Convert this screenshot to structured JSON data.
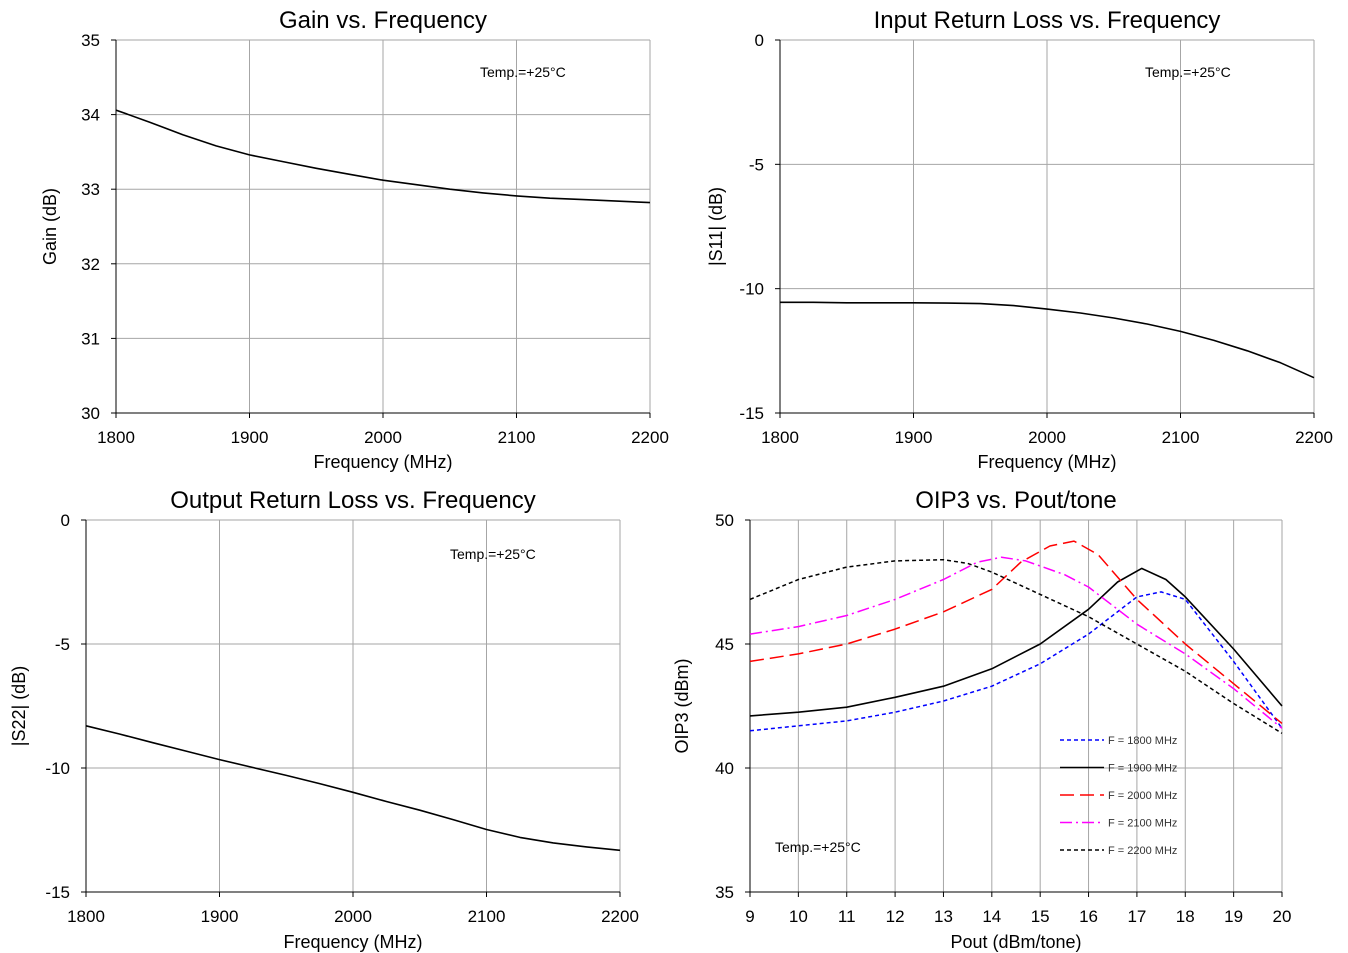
{
  "chart_data": [
    {
      "type": "line",
      "title": "Gain vs. Frequency",
      "xlabel": "Frequency (MHz)",
      "ylabel": "Gain (dB)",
      "xlim": [
        1800,
        2200
      ],
      "ylim": [
        30,
        35
      ],
      "xticks": [
        1800,
        1900,
        2000,
        2100,
        2200
      ],
      "yticks": [
        30,
        31,
        32,
        33,
        34,
        35
      ],
      "annotation": "Temp.=+25°C",
      "grid": true,
      "series": [
        {
          "color": "#000000",
          "dash": "solid",
          "points": [
            [
              1800,
              34.06
            ],
            [
              1825,
              33.9
            ],
            [
              1850,
              33.73
            ],
            [
              1875,
              33.58
            ],
            [
              1900,
              33.46
            ],
            [
              1925,
              33.37
            ],
            [
              1950,
              33.28
            ],
            [
              1975,
              33.2
            ],
            [
              2000,
              33.12
            ],
            [
              2025,
              33.06
            ],
            [
              2050,
              33.0
            ],
            [
              2075,
              32.95
            ],
            [
              2100,
              32.91
            ],
            [
              2125,
              32.88
            ],
            [
              2150,
              32.86
            ],
            [
              2175,
              32.84
            ],
            [
              2200,
              32.82
            ]
          ]
        }
      ]
    },
    {
      "type": "line",
      "title": "Input Return Loss vs. Frequency",
      "xlabel": "Frequency (MHz)",
      "ylabel": "|S11| (dB)",
      "xlim": [
        1800,
        2200
      ],
      "ylim": [
        -15,
        0
      ],
      "xticks": [
        1800,
        1900,
        2000,
        2100,
        2200
      ],
      "yticks": [
        -15,
        -10,
        -5,
        0
      ],
      "annotation": "Temp.=+25°C",
      "grid": true,
      "series": [
        {
          "color": "#000000",
          "dash": "solid",
          "points": [
            [
              1800,
              -10.55
            ],
            [
              1825,
              -10.55
            ],
            [
              1850,
              -10.57
            ],
            [
              1875,
              -10.57
            ],
            [
              1900,
              -10.57
            ],
            [
              1925,
              -10.58
            ],
            [
              1950,
              -10.6
            ],
            [
              1975,
              -10.68
            ],
            [
              2000,
              -10.82
            ],
            [
              2025,
              -10.98
            ],
            [
              2050,
              -11.18
            ],
            [
              2075,
              -11.42
            ],
            [
              2100,
              -11.72
            ],
            [
              2125,
              -12.08
            ],
            [
              2150,
              -12.5
            ],
            [
              2175,
              -12.98
            ],
            [
              2200,
              -13.58
            ]
          ]
        }
      ]
    },
    {
      "type": "line",
      "title": "Output Return Loss vs. Frequency",
      "xlabel": "Frequency (MHz)",
      "ylabel": "|S22| (dB)",
      "xlim": [
        1800,
        2200
      ],
      "ylim": [
        -15,
        0
      ],
      "xticks": [
        1800,
        1900,
        2000,
        2100,
        2200
      ],
      "yticks": [
        -15,
        -10,
        -5,
        0
      ],
      "annotation": "Temp.=+25°C",
      "grid": true,
      "series": [
        {
          "color": "#000000",
          "dash": "solid",
          "points": [
            [
              1800,
              -8.3
            ],
            [
              1825,
              -8.63
            ],
            [
              1850,
              -8.98
            ],
            [
              1875,
              -9.32
            ],
            [
              1900,
              -9.66
            ],
            [
              1925,
              -9.98
            ],
            [
              1950,
              -10.3
            ],
            [
              1975,
              -10.63
            ],
            [
              2000,
              -10.98
            ],
            [
              2025,
              -11.35
            ],
            [
              2050,
              -11.7
            ],
            [
              2075,
              -12.08
            ],
            [
              2100,
              -12.48
            ],
            [
              2125,
              -12.8
            ],
            [
              2150,
              -13.02
            ],
            [
              2175,
              -13.18
            ],
            [
              2200,
              -13.32
            ]
          ]
        }
      ]
    },
    {
      "type": "line",
      "title": "OIP3 vs. Pout/tone",
      "xlabel": "Pout (dBm/tone)",
      "ylabel": "OIP3 (dBm)",
      "xlim": [
        9,
        20
      ],
      "ylim": [
        35,
        50
      ],
      "xticks": [
        9,
        10,
        11,
        12,
        13,
        14,
        15,
        16,
        17,
        18,
        19,
        20
      ],
      "yticks": [
        35,
        40,
        45,
        50
      ],
      "annotation": "Temp.=+25°C",
      "grid": true,
      "legend_position": "right",
      "series": [
        {
          "name": "F = 1800 MHz",
          "color": "#0000ff",
          "dash": "short-dash",
          "points": [
            [
              9,
              41.5
            ],
            [
              10,
              41.7
            ],
            [
              11,
              41.9
            ],
            [
              12,
              42.25
            ],
            [
              13,
              42.7
            ],
            [
              14,
              43.3
            ],
            [
              15,
              44.2
            ],
            [
              16,
              45.4
            ],
            [
              17,
              46.9
            ],
            [
              17.5,
              47.1
            ],
            [
              18,
              46.8
            ],
            [
              19,
              44.3
            ],
            [
              20,
              41.6
            ]
          ]
        },
        {
          "name": "F = 1900 MHz",
          "color": "#000000",
          "dash": "solid",
          "points": [
            [
              9,
              42.1
            ],
            [
              10,
              42.25
            ],
            [
              11,
              42.45
            ],
            [
              12,
              42.85
            ],
            [
              13,
              43.3
            ],
            [
              14,
              44.0
            ],
            [
              15,
              45.0
            ],
            [
              16,
              46.4
            ],
            [
              16.6,
              47.5
            ],
            [
              17.1,
              48.05
            ],
            [
              17.6,
              47.6
            ],
            [
              18,
              46.9
            ],
            [
              19,
              44.8
            ],
            [
              20,
              42.5
            ]
          ]
        },
        {
          "name": "F = 2000 MHz",
          "color": "#ff0000",
          "dash": "long-dash",
          "points": [
            [
              9,
              44.3
            ],
            [
              10,
              44.6
            ],
            [
              11,
              45.0
            ],
            [
              12,
              45.6
            ],
            [
              13,
              46.3
            ],
            [
              14,
              47.2
            ],
            [
              14.6,
              48.3
            ],
            [
              15.2,
              48.95
            ],
            [
              15.7,
              49.15
            ],
            [
              16.2,
              48.6
            ],
            [
              17,
              46.8
            ],
            [
              18,
              45.0
            ],
            [
              19,
              43.4
            ],
            [
              20,
              41.8
            ]
          ]
        },
        {
          "name": "F = 2100 MHz",
          "color": "#ff00ff",
          "dash": "dash-dot",
          "points": [
            [
              9,
              45.4
            ],
            [
              10,
              45.7
            ],
            [
              11,
              46.15
            ],
            [
              12,
              46.8
            ],
            [
              13,
              47.6
            ],
            [
              13.7,
              48.3
            ],
            [
              14.2,
              48.5
            ],
            [
              14.7,
              48.35
            ],
            [
              15.5,
              47.8
            ],
            [
              16,
              47.3
            ],
            [
              17,
              45.8
            ],
            [
              18,
              44.6
            ],
            [
              19,
              43.2
            ],
            [
              20,
              41.6
            ]
          ]
        },
        {
          "name": "F = 2200 MHz",
          "color": "#000000",
          "dash": "short-dash",
          "points": [
            [
              9,
              46.8
            ],
            [
              10,
              47.6
            ],
            [
              11,
              48.1
            ],
            [
              12,
              48.35
            ],
            [
              13,
              48.4
            ],
            [
              13.5,
              48.25
            ],
            [
              14,
              47.9
            ],
            [
              15,
              47.0
            ],
            [
              16,
              46.1
            ],
            [
              17,
              45.0
            ],
            [
              18,
              43.9
            ],
            [
              19,
              42.6
            ],
            [
              20,
              41.4
            ]
          ]
        }
      ]
    }
  ]
}
